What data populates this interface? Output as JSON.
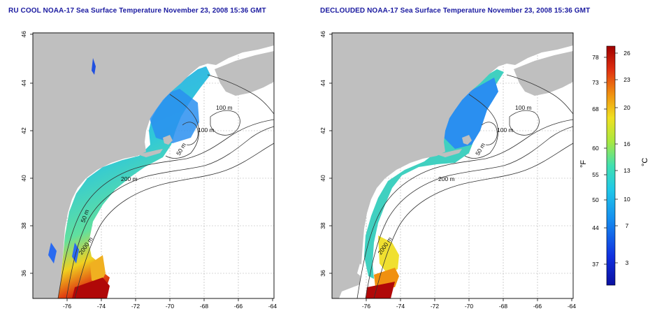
{
  "titles": {
    "left": "RU COOL NOAA-17 Sea Surface Temperature November 23, 2008 15:36 GMT",
    "right": "DECLOUDED NOAA-17 Sea Surface Temperature November 23, 2008 15:36 GMT"
  },
  "axes": {
    "lon_ticks": [
      "-76",
      "-74",
      "-72",
      "-70",
      "-68",
      "-66",
      "-64"
    ],
    "lat_ticks": [
      "46",
      "44",
      "42",
      "40",
      "38",
      "36"
    ]
  },
  "contour_labels": {
    "left": [
      "100 m",
      "100 m",
      "50 m",
      "200 m",
      "50 m",
      "2000 m"
    ],
    "right": [
      "100 m",
      "100 m",
      "50 m",
      "200 m",
      "2000 m"
    ]
  },
  "colorbar": {
    "f_label": "°F",
    "c_label": "°C",
    "f_ticks": [
      "78",
      "73",
      "68",
      "60",
      "55",
      "50",
      "44",
      "37"
    ],
    "c_ticks": [
      "26",
      "23",
      "20",
      "16",
      "13",
      "10",
      "7",
      "3"
    ]
  },
  "colors": {
    "land": "#bfbfbf",
    "title": "#1a1aa0",
    "cold": "#0b1fa8",
    "hot": "#b00000"
  }
}
